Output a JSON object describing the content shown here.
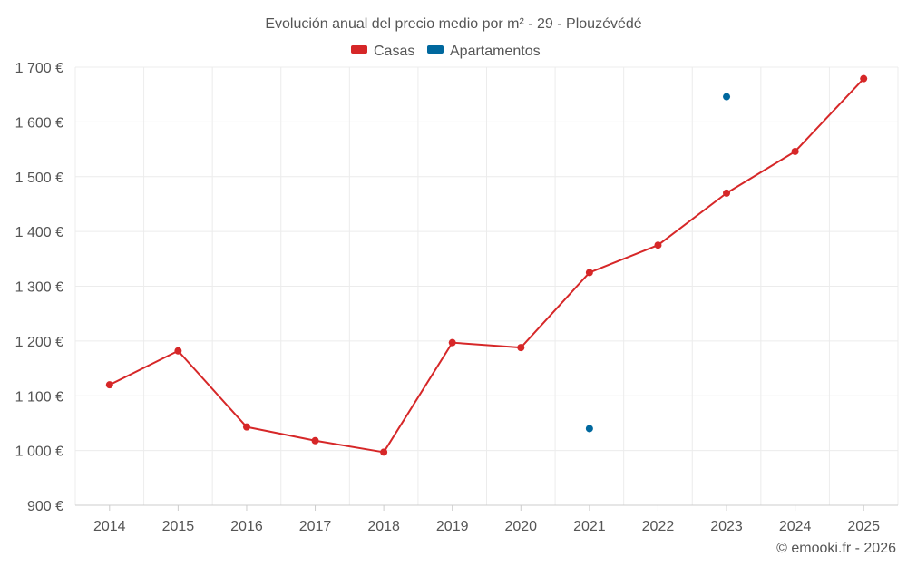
{
  "chart_data": {
    "type": "line",
    "title": "Evolución anual del precio medio por m² - 29 - Plouzévédé",
    "categories": [
      "2014",
      "2015",
      "2016",
      "2017",
      "2018",
      "2019",
      "2020",
      "2021",
      "2022",
      "2023",
      "2024",
      "2025"
    ],
    "series": [
      {
        "name": "Casas",
        "color": "#d62728",
        "style": "line+markers",
        "values": [
          1120,
          1182,
          1043,
          1018,
          997,
          1197,
          1188,
          1325,
          1375,
          1470,
          1546,
          1679
        ]
      },
      {
        "name": "Apartamentos",
        "color": "#00689e",
        "style": "markers",
        "values": [
          null,
          null,
          null,
          null,
          null,
          null,
          null,
          1040,
          null,
          1646,
          null,
          null
        ]
      }
    ],
    "ylim": [
      900,
      1700
    ],
    "yticks": [
      {
        "value": 900,
        "label": "900 €"
      },
      {
        "value": 1000,
        "label": "1 000 €"
      },
      {
        "value": 1100,
        "label": "1 100 €"
      },
      {
        "value": 1200,
        "label": "1 200 €"
      },
      {
        "value": 1300,
        "label": "1 300 €"
      },
      {
        "value": 1400,
        "label": "1 400 €"
      },
      {
        "value": 1500,
        "label": "1 500 €"
      },
      {
        "value": 1600,
        "label": "1 600 €"
      },
      {
        "value": 1700,
        "label": "1 700 €"
      }
    ],
    "xlabel": "",
    "ylabel": "",
    "grid": true,
    "legend_position": "top-center",
    "credit": "© emooki.fr - 2026"
  }
}
